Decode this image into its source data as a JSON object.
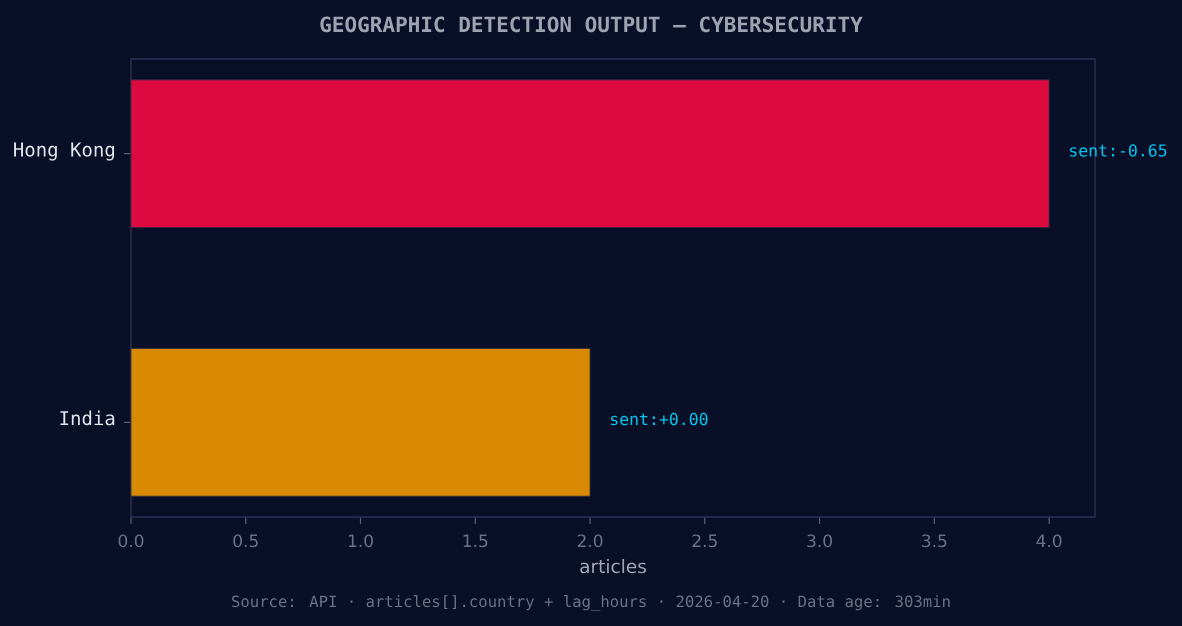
{
  "chart_data": {
    "type": "bar",
    "orientation": "horizontal",
    "title": "GEOGRAPHIC DETECTION OUTPUT — CYBERSECURITY",
    "xlabel": "articles",
    "categories": [
      "Hong Kong",
      "India"
    ],
    "values": [
      4,
      2
    ],
    "colors": [
      "#dc0a3e",
      "#d98a04"
    ],
    "xlim": [
      0,
      4.2
    ],
    "xticks": [
      {
        "value": 0,
        "label": "0.0"
      },
      {
        "value": 0.5,
        "label": "0.5"
      },
      {
        "value": 1,
        "label": "1.0"
      },
      {
        "value": 1.5,
        "label": "1.5"
      },
      {
        "value": 2,
        "label": "2.0"
      },
      {
        "value": 2.5,
        "label": "2.5"
      },
      {
        "value": 3,
        "label": "3.0"
      },
      {
        "value": 3.5,
        "label": "3.5"
      },
      {
        "value": 4,
        "label": "4.0"
      }
    ],
    "annotations": [
      {
        "text": "sent:-0.65",
        "x": 4,
        "y": "Hong Kong"
      },
      {
        "text": "sent:+0.00",
        "x": 2,
        "y": "India"
      },
      "Source: API · articles[].country + lag_hours · 2026-04-20 · Data age: 303min"
    ]
  }
}
